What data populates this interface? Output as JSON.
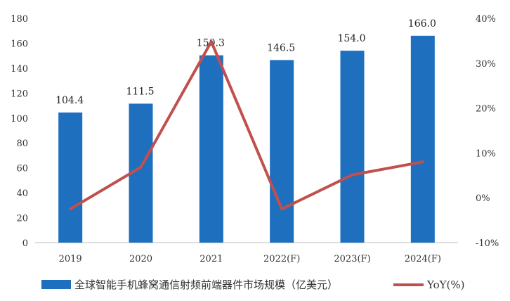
{
  "chart_data": {
    "type": "bar+line",
    "categories": [
      "2019",
      "2020",
      "2021",
      "2022(F)",
      "2023(F)",
      "2024(F)"
    ],
    "series": [
      {
        "name": "全球智能手机蜂窝通信射频前端器件市场规模（亿美元）",
        "type": "bar",
        "axis": "left",
        "values": [
          104.4,
          111.5,
          150.3,
          146.5,
          154.0,
          166.0
        ],
        "labels": [
          "104.4",
          "111.5",
          "150.3",
          "146.5",
          "154.0",
          "166.0"
        ],
        "color": "#1f6fbf"
      },
      {
        "name": "YoY(%)",
        "type": "line",
        "axis": "right",
        "values": [
          -2.5,
          6.8,
          34.8,
          -2.5,
          5.1,
          8.0
        ],
        "color": "#c0504d"
      }
    ],
    "y_left": {
      "min": 0,
      "max": 180,
      "step": 20,
      "tick_labels": [
        "0",
        "20",
        "40",
        "60",
        "80",
        "100",
        "120",
        "140",
        "160",
        "180"
      ]
    },
    "y_right": {
      "min": -10,
      "max": 40,
      "step": 10,
      "tick_labels": [
        "-10%",
        "0%",
        "10%",
        "20%",
        "30%",
        "40%"
      ]
    },
    "legend_position": "bottom",
    "grid": false
  }
}
